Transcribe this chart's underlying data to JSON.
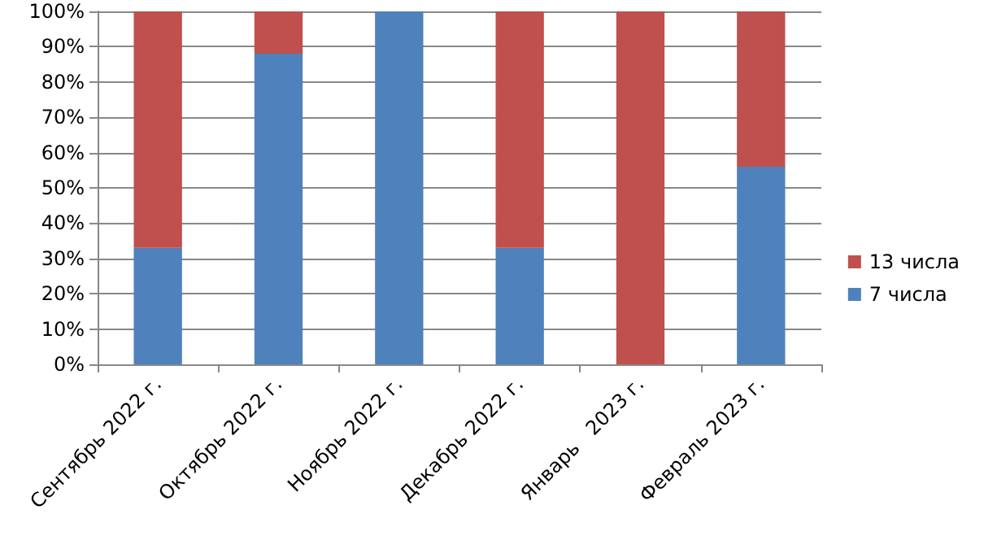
{
  "chart_data": {
    "type": "bar",
    "stacked": true,
    "categories": [
      "Сентябрь 2022 г.",
      "Октябрь 2022 г.",
      "Ноябрь 2022 г.",
      "Декабрь 2022 г.",
      "Январь   2023 г.",
      "Февраль 2023 г."
    ],
    "series": [
      {
        "name": "7 числа",
        "color": "#4f81bd",
        "values": [
          33,
          88,
          100,
          33,
          0,
          56
        ]
      },
      {
        "name": "13 числа",
        "color": "#c0504d",
        "values": [
          67,
          12,
          0,
          67,
          100,
          44
        ]
      }
    ],
    "ylim": [
      0,
      100
    ],
    "yticks": [
      {
        "value": 0,
        "label": "0%"
      },
      {
        "value": 10,
        "label": "10%"
      },
      {
        "value": 20,
        "label": "20%"
      },
      {
        "value": 30,
        "label": "30%"
      },
      {
        "value": 40,
        "label": "40%"
      },
      {
        "value": 50,
        "label": "50%"
      },
      {
        "value": 60,
        "label": "60%"
      },
      {
        "value": 70,
        "label": "70%"
      },
      {
        "value": 80,
        "label": "80%"
      },
      {
        "value": 90,
        "label": "90%"
      },
      {
        "value": 100,
        "label": "100%"
      }
    ],
    "grid": "y",
    "legend": "right"
  }
}
